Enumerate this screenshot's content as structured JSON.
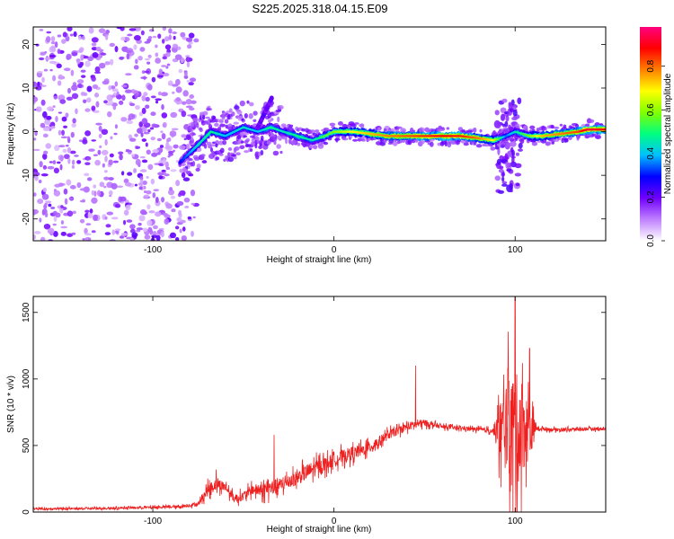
{
  "title": "S225.2025.318.04.15.E09",
  "chart_data": [
    {
      "type": "heatmap",
      "xlabel": "Height of straight line (km)",
      "ylabel": "Frequency (Hz)",
      "xlim": [
        -166,
        150
      ],
      "ylim": [
        -25,
        24
      ],
      "xticks": [
        -100,
        0,
        100
      ],
      "yticks": [
        -20,
        -10,
        0,
        10,
        20
      ],
      "colorbar": {
        "label": "Normalized spectral amplitude",
        "ticks": [
          0.0,
          0.2,
          0.4,
          0.6,
          0.8
        ],
        "range": [
          0,
          0.98
        ],
        "colors": [
          "#ffffff",
          "#c080ff",
          "#7000ff",
          "#0000ff",
          "#00c0ff",
          "#00ff80",
          "#80ff00",
          "#ffff00",
          "#ff8000",
          "#ff0000",
          "#ff0080"
        ]
      },
      "ridge": {
        "x": [
          -85,
          -75,
          -68,
          -60,
          -50,
          -42,
          -35,
          -28,
          -20,
          -12,
          -5,
          0,
          10,
          20,
          30,
          45,
          60,
          70,
          80,
          88,
          95,
          100,
          108,
          115,
          125,
          135,
          140,
          150
        ],
        "y": [
          -7,
          -3,
          0,
          -1,
          1,
          0,
          1,
          0,
          -1,
          -2,
          -1,
          0,
          0,
          -0.5,
          -1,
          -1,
          -1,
          -1,
          -1.5,
          -2,
          -1,
          0,
          -1,
          -1,
          -0.5,
          0,
          0.5,
          0.5
        ],
        "amplitude": [
          0.3,
          0.45,
          0.5,
          0.4,
          0.45,
          0.4,
          0.5,
          0.45,
          0.5,
          0.45,
          0.55,
          0.6,
          0.7,
          0.75,
          0.8,
          0.85,
          0.9,
          0.88,
          0.8,
          0.7,
          0.35,
          0.45,
          0.6,
          0.75,
          0.8,
          0.85,
          0.95,
          0.9
        ]
      },
      "noise_region_x": [
        -166,
        -80
      ],
      "burst_x": [
        90,
        103
      ]
    },
    {
      "type": "line",
      "xlabel": "Height of straight line (km)",
      "ylabel": "SNR (10 * v/v)",
      "xlim": [
        -166,
        150
      ],
      "ylim": [
        0,
        1620
      ],
      "xticks": [
        -100,
        0,
        100
      ],
      "yticks": [
        0,
        500,
        1000,
        1500
      ],
      "color": "#ee2020",
      "series": [
        {
          "x": [
            -166,
            -140,
            -120,
            -100,
            -85,
            -75,
            -70,
            -65,
            -60,
            -55,
            -50,
            -45,
            -40,
            -35,
            -30,
            -25,
            -20,
            -15,
            -10,
            -5,
            0,
            5,
            10,
            15,
            20,
            25,
            30,
            35,
            40,
            45,
            50,
            60,
            70,
            80,
            88,
            92,
            96,
            100,
            104,
            108,
            112,
            120,
            130,
            140,
            150
          ],
          "y": [
            25,
            25,
            30,
            35,
            40,
            60,
            160,
            210,
            190,
            100,
            120,
            170,
            160,
            180,
            200,
            230,
            260,
            300,
            330,
            360,
            390,
            420,
            440,
            460,
            490,
            530,
            580,
            610,
            640,
            660,
            670,
            640,
            630,
            620,
            610,
            600,
            650,
            600,
            650,
            600,
            630,
            620,
            620,
            625,
            625
          ],
          "spread": [
            15,
            15,
            15,
            18,
            20,
            30,
            90,
            90,
            70,
            60,
            70,
            80,
            100,
            120,
            110,
            100,
            110,
            120,
            120,
            110,
            100,
            100,
            100,
            90,
            90,
            80,
            70,
            60,
            60,
            60,
            50,
            30,
            30,
            30,
            40,
            500,
            700,
            900,
            700,
            400,
            30,
            25,
            25,
            25,
            25
          ]
        }
      ],
      "peaks": [
        {
          "x": 100,
          "y": 1620
        },
        {
          "x": 108,
          "y": 1230
        },
        {
          "x": 96,
          "y": 1080
        },
        {
          "x": 45,
          "y": 1100
        },
        {
          "x": -33,
          "y": 580
        },
        {
          "x": -65,
          "y": 320
        }
      ]
    }
  ]
}
